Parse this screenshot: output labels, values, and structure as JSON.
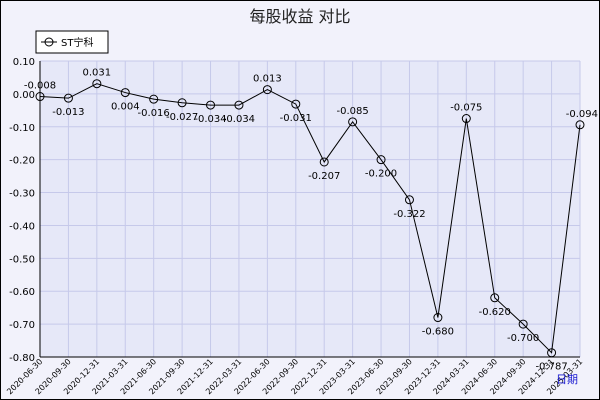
{
  "chart_data": {
    "type": "line",
    "title": "每股收益  对比",
    "xlabel": "日期",
    "ylabel": "",
    "ylim": [
      -0.8,
      0.1
    ],
    "yticks": [
      "0.10",
      "0.00",
      "-0.10",
      "-0.20",
      "-0.30",
      "-0.40",
      "-0.50",
      "-0.60",
      "-0.70",
      "-0.80"
    ],
    "ytick_values": [
      0.1,
      0.0,
      -0.1,
      -0.2,
      -0.3,
      -0.4,
      -0.5,
      -0.6,
      -0.7,
      -0.8
    ],
    "grid": true,
    "legend": "top-left",
    "categories": [
      "2020-06-30",
      "2020-09-30",
      "2020-12-31",
      "2021-03-31",
      "2021-06-30",
      "2021-09-30",
      "2021-12-31",
      "2022-03-31",
      "2022-06-30",
      "2022-09-30",
      "2022-12-31",
      "2023-03-31",
      "2023-06-30",
      "2023-09-30",
      "2023-12-31",
      "2024-03-31",
      "2024-06-30",
      "2024-09-30",
      "2024-12-31",
      "2025-03-31"
    ],
    "series": [
      {
        "name": "ST宁科",
        "color": "#000000",
        "values": [
          -0.008,
          -0.013,
          0.031,
          0.004,
          -0.016,
          -0.027,
          -0.034,
          -0.034,
          0.013,
          -0.031,
          -0.207,
          -0.085,
          -0.2,
          -0.322,
          -0.68,
          -0.075,
          -0.62,
          -0.7,
          -0.787,
          -0.094
        ],
        "labels": [
          "-0.008",
          "-0.013",
          "0.031",
          "0.004",
          "-0.016",
          "-0.027",
          "-0.034",
          "-0.034",
          "0.013",
          "-0.031",
          "-0.207",
          "-0.085",
          "-0.200",
          "-0.322",
          "-0.680",
          "-0.075",
          "-0.620",
          "-0.700",
          "-0.787",
          "-0.094"
        ]
      }
    ]
  },
  "colors": {
    "plot_bg": "#e6e8f8",
    "grid": "#c6c9ea",
    "line": "#000000",
    "xlabel": "#1a1ad0"
  }
}
